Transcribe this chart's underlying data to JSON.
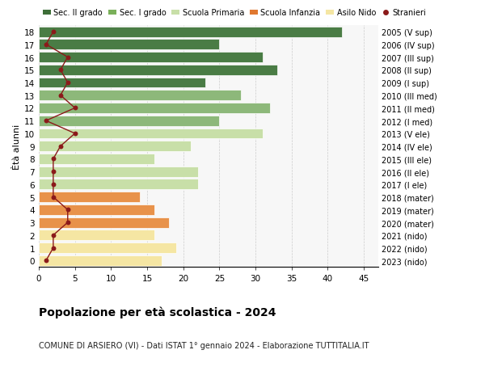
{
  "ages": [
    0,
    1,
    2,
    3,
    4,
    5,
    6,
    7,
    8,
    9,
    10,
    11,
    12,
    13,
    14,
    15,
    16,
    17,
    18
  ],
  "values": [
    17,
    19,
    16,
    18,
    16,
    14,
    22,
    22,
    16,
    21,
    31,
    25,
    32,
    28,
    23,
    33,
    31,
    25,
    42
  ],
  "stranieri": [
    1,
    2,
    2,
    4,
    4,
    2,
    2,
    2,
    2,
    3,
    5,
    1,
    5,
    3,
    4,
    3,
    4,
    1,
    2
  ],
  "right_labels": [
    "2023 (nido)",
    "2022 (nido)",
    "2021 (nido)",
    "2020 (mater)",
    "2019 (mater)",
    "2018 (mater)",
    "2017 (I ele)",
    "2016 (II ele)",
    "2015 (III ele)",
    "2014 (IV ele)",
    "2013 (V ele)",
    "2012 (I med)",
    "2011 (II med)",
    "2010 (III med)",
    "2009 (I sup)",
    "2008 (II sup)",
    "2007 (III sup)",
    "2006 (IV sup)",
    "2005 (V sup)"
  ],
  "bar_colors": [
    "#f5e6a3",
    "#f5e6a3",
    "#f5e6a3",
    "#e8924a",
    "#e8924a",
    "#e8924a",
    "#c8dfa8",
    "#c8dfa8",
    "#c8dfa8",
    "#c8dfa8",
    "#c8dfa8",
    "#8db87a",
    "#8db87a",
    "#8db87a",
    "#4a7c45",
    "#4a7c45",
    "#4a7c45",
    "#4a7c45",
    "#4a7c45"
  ],
  "legend_labels": [
    "Sec. II grado",
    "Sec. I grado",
    "Scuola Primaria",
    "Scuola Infanzia",
    "Asilo Nido",
    "Stranieri"
  ],
  "legend_colors": [
    "#3d6e38",
    "#7ab05a",
    "#c8dfa8",
    "#e07830",
    "#f5e6a3",
    "#8b1a1a"
  ],
  "title": "Popolazione per età scolastica - 2024",
  "subtitle": "COMUNE DI ARSIERO (VI) - Dati ISTAT 1° gennaio 2024 - Elaborazione TUTTITALIA.IT",
  "ylabel_left": "Ètà alunni",
  "xlim": [
    0,
    47
  ],
  "ylim": [
    -0.5,
    18.5
  ],
  "xticks": [
    0,
    5,
    10,
    15,
    20,
    25,
    30,
    35,
    40,
    45
  ],
  "bg_color": "#f7f7f7",
  "grid_color": "#cccccc",
  "stranieri_color": "#8b1a1a",
  "line_color": "#8b1a1a",
  "bar_height": 0.82
}
